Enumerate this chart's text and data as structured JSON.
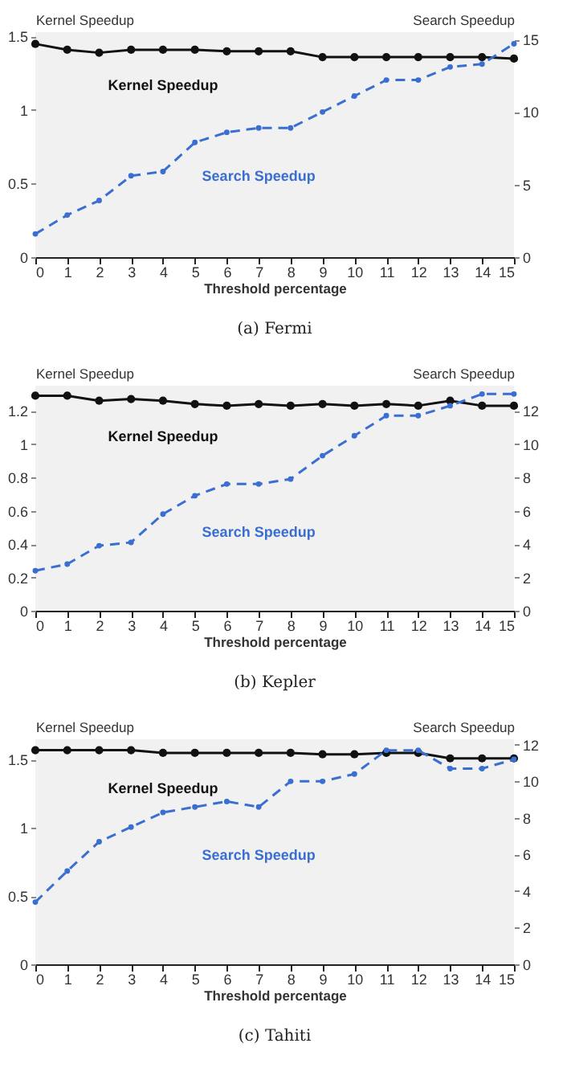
{
  "chart_data": [
    {
      "type": "line",
      "title": "(a) Fermi",
      "xlabel": "Threshold percentage",
      "ylabel": "Kernel Speedup",
      "y2label": "Search Speedup",
      "x": [
        0,
        1,
        2,
        3,
        4,
        5,
        6,
        7,
        8,
        9,
        10,
        11,
        12,
        13,
        14,
        15
      ],
      "xlim": [
        0,
        15
      ],
      "xticks": [
        0,
        1,
        2,
        3,
        4,
        5,
        6,
        7,
        8,
        9,
        10,
        11,
        12,
        13,
        14,
        15
      ],
      "ylim": [
        0,
        1.53
      ],
      "yticks": [
        0,
        0.5,
        1,
        1.5
      ],
      "y2lim": [
        0,
        15.5
      ],
      "y2ticks": [
        0,
        5,
        10,
        15
      ],
      "grid": false,
      "legend": false,
      "marker": "circle",
      "series": [
        {
          "name": "Kernel Speedup",
          "color": "#111111",
          "line_style": "solid",
          "values": [
            1.45,
            1.41,
            1.39,
            1.41,
            1.41,
            1.41,
            1.4,
            1.4,
            1.4,
            1.36,
            1.36,
            1.36,
            1.36,
            1.36,
            1.36,
            1.35
          ]
        },
        {
          "name": "Search Speedup",
          "color": "#3a6fd1",
          "line_style": "dashed",
          "axis": "y2",
          "values": [
            1.6,
            2.9,
            3.9,
            5.6,
            5.9,
            7.9,
            8.6,
            8.9,
            8.9,
            10.0,
            11.1,
            12.2,
            12.2,
            13.1,
            13.3,
            14.7
          ]
        }
      ]
    },
    {
      "type": "line",
      "title": "(b) Kepler",
      "xlabel": "Threshold percentage",
      "ylabel": "Kernel Speedup",
      "y2label": "Search Speedup",
      "x": [
        0,
        1,
        2,
        3,
        4,
        5,
        6,
        7,
        8,
        9,
        10,
        11,
        12,
        13,
        14,
        15
      ],
      "xlim": [
        0,
        15
      ],
      "xticks": [
        0,
        1,
        2,
        3,
        4,
        5,
        6,
        7,
        8,
        9,
        10,
        11,
        12,
        13,
        14,
        15
      ],
      "ylim": [
        0,
        1.35
      ],
      "yticks": [
        0,
        0.2,
        0.4,
        0.6,
        0.8,
        1,
        1.2
      ],
      "y2lim": [
        0,
        13.5
      ],
      "y2ticks": [
        0,
        2,
        4,
        6,
        8,
        10,
        12
      ],
      "grid": false,
      "legend": false,
      "marker": "circle",
      "series": [
        {
          "name": "Kernel Speedup",
          "color": "#111111",
          "line_style": "solid",
          "values": [
            1.29,
            1.29,
            1.26,
            1.27,
            1.26,
            1.24,
            1.23,
            1.24,
            1.23,
            1.24,
            1.23,
            1.24,
            1.23,
            1.26,
            1.23,
            1.23
          ]
        },
        {
          "name": "Search Speedup",
          "color": "#3a6fd1",
          "line_style": "dashed",
          "axis": "y2",
          "values": [
            2.4,
            2.8,
            3.9,
            4.1,
            5.8,
            6.9,
            7.6,
            7.6,
            7.9,
            9.3,
            10.5,
            11.7,
            11.7,
            12.3,
            13.0,
            13.0
          ]
        }
      ]
    },
    {
      "type": "line",
      "title": "(c) Tahiti",
      "xlabel": "Threshold percentage",
      "ylabel": "Kernel Speedup",
      "y2label": "Search Speedup",
      "x": [
        0,
        1,
        2,
        3,
        4,
        5,
        6,
        7,
        8,
        9,
        10,
        11,
        12,
        13,
        14,
        15
      ],
      "xlim": [
        0,
        15
      ],
      "xticks": [
        0,
        1,
        2,
        3,
        4,
        5,
        6,
        7,
        8,
        9,
        10,
        11,
        12,
        13,
        14,
        15
      ],
      "ylim": [
        0,
        1.65
      ],
      "yticks": [
        0,
        0.5,
        1,
        1.5
      ],
      "y2lim": [
        0,
        12.3
      ],
      "y2ticks": [
        0,
        2,
        4,
        6,
        8,
        10,
        12
      ],
      "grid": false,
      "legend": false,
      "marker": "circle",
      "series": [
        {
          "name": "Kernel Speedup",
          "color": "#111111",
          "line_style": "solid",
          "values": [
            1.57,
            1.57,
            1.57,
            1.57,
            1.55,
            1.55,
            1.55,
            1.55,
            1.55,
            1.54,
            1.54,
            1.55,
            1.55,
            1.51,
            1.51,
            1.51
          ]
        },
        {
          "name": "Search Speedup",
          "color": "#3a6fd1",
          "line_style": "dashed",
          "axis": "y2",
          "values": [
            3.4,
            5.1,
            6.7,
            7.5,
            8.3,
            8.6,
            8.9,
            8.6,
            10.0,
            10.0,
            10.4,
            11.7,
            11.7,
            10.7,
            10.7,
            11.2
          ]
        }
      ]
    }
  ]
}
